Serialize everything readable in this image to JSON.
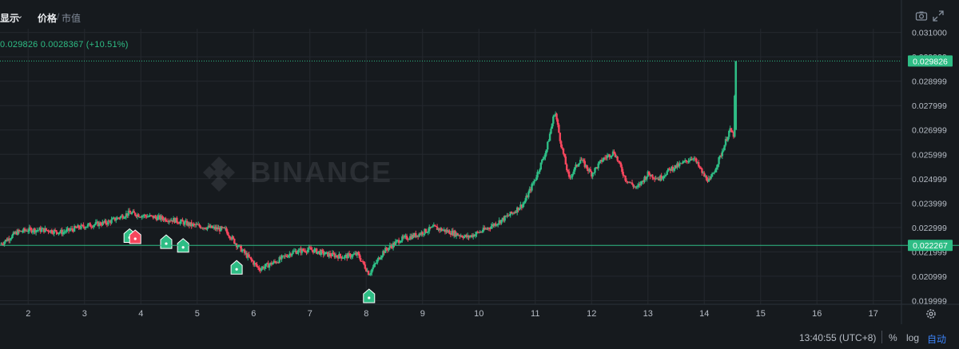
{
  "toolbar": {
    "display_label": "显示",
    "price_label": "价格",
    "separator": "/",
    "market_cap_label": "市值",
    "camera_icon": "camera-icon",
    "expand_icon": "expand-icon"
  },
  "ohlc": {
    "text": "0.029826  0.0028367 (+10.51%)"
  },
  "bottom": {
    "time": "13:40:55 (UTC+8)",
    "percent_label": "%",
    "log_label": "log",
    "auto_label": "自动",
    "settings_icon": "settings-gear-icon"
  },
  "watermark": "BINANCE",
  "colors": {
    "up": "#2ebd85",
    "down": "#f6465d",
    "background": "#161a1e",
    "grid": "#24282e",
    "axis_text": "#b7bdc6",
    "accent": "#3b82f6"
  },
  "chart_data": {
    "type": "line",
    "subtype": "candlestick",
    "title": "",
    "xlabel": "",
    "ylabel": "",
    "y_ticks": [
      "0.031000",
      "0.029999",
      "0.028999",
      "0.027999",
      "0.026999",
      "0.025999",
      "0.024999",
      "0.023999",
      "0.022999",
      "0.021999",
      "0.020999",
      "0.019999"
    ],
    "x_ticks": [
      "2",
      "3",
      "4",
      "5",
      "6",
      "7",
      "8",
      "9",
      "10",
      "11",
      "12",
      "13",
      "14",
      "15",
      "16",
      "17"
    ],
    "ylim": [
      0.01985,
      0.03115
    ],
    "xlim": [
      1.5,
      17.5
    ],
    "current_price": 0.029826,
    "current_price_label": "0.029826",
    "horizontal_line": 0.022267,
    "horizontal_line_label": "0.022267",
    "grid": true,
    "series": [
      {
        "x": [
          1.5,
          1.8,
          2.0,
          2.3,
          2.6,
          2.9,
          3.1,
          3.4,
          3.6,
          3.8,
          4.0,
          4.3,
          4.6,
          4.9,
          5.2,
          5.5,
          5.7,
          5.9,
          6.1,
          6.4,
          6.7,
          7.0,
          7.3,
          7.6,
          7.85,
          8.05,
          8.3,
          8.6,
          8.9,
          9.2,
          9.5,
          9.8,
          10.1,
          10.4,
          10.6,
          10.8,
          11.0,
          11.2,
          11.35,
          11.45,
          11.6,
          11.8,
          12.0,
          12.2,
          12.4,
          12.6,
          12.8,
          13.0,
          13.2,
          13.4,
          13.6,
          13.8,
          14.0,
          14.1,
          14.3,
          14.45,
          14.52,
          14.56
        ],
        "values": [
          0.0223,
          0.0228,
          0.0229,
          0.0229,
          0.0228,
          0.023,
          0.0231,
          0.0232,
          0.0234,
          0.0236,
          0.0235,
          0.0234,
          0.0233,
          0.0231,
          0.023,
          0.0229,
          0.0223,
          0.0218,
          0.0213,
          0.0216,
          0.022,
          0.0221,
          0.0219,
          0.0218,
          0.0219,
          0.0211,
          0.022,
          0.0225,
          0.0227,
          0.023,
          0.0228,
          0.0226,
          0.0229,
          0.0233,
          0.0236,
          0.024,
          0.025,
          0.0262,
          0.0278,
          0.0265,
          0.025,
          0.0258,
          0.0252,
          0.0258,
          0.0261,
          0.025,
          0.0246,
          0.0252,
          0.025,
          0.0254,
          0.0256,
          0.0259,
          0.0251,
          0.0249,
          0.026,
          0.027,
          0.0268,
          0.0298
        ]
      }
    ],
    "markers": [
      {
        "x": 3.8,
        "label": "B",
        "color": "#2ebd85"
      },
      {
        "x": 3.9,
        "label": "S",
        "color": "#f6465d"
      },
      {
        "x": 4.45,
        "label": "B",
        "color": "#2ebd85"
      },
      {
        "x": 4.75,
        "label": "B",
        "color": "#2ebd85"
      },
      {
        "x": 5.7,
        "label": "B",
        "color": "#2ebd85"
      },
      {
        "x": 8.05,
        "label": "B",
        "color": "#2ebd85"
      }
    ]
  }
}
